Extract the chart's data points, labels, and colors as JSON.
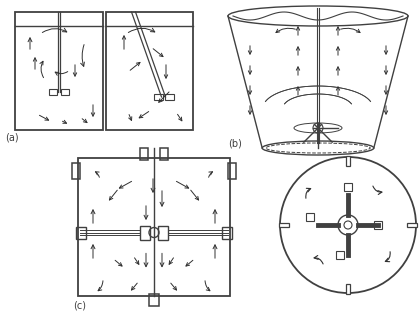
{
  "bg_color": "#ffffff",
  "lc": "#404040",
  "ac": "#303030",
  "label_a": "(a)",
  "label_b": "(b)",
  "label_c": "(c)",
  "fig_width": 4.19,
  "fig_height": 3.15,
  "dpi": 100
}
